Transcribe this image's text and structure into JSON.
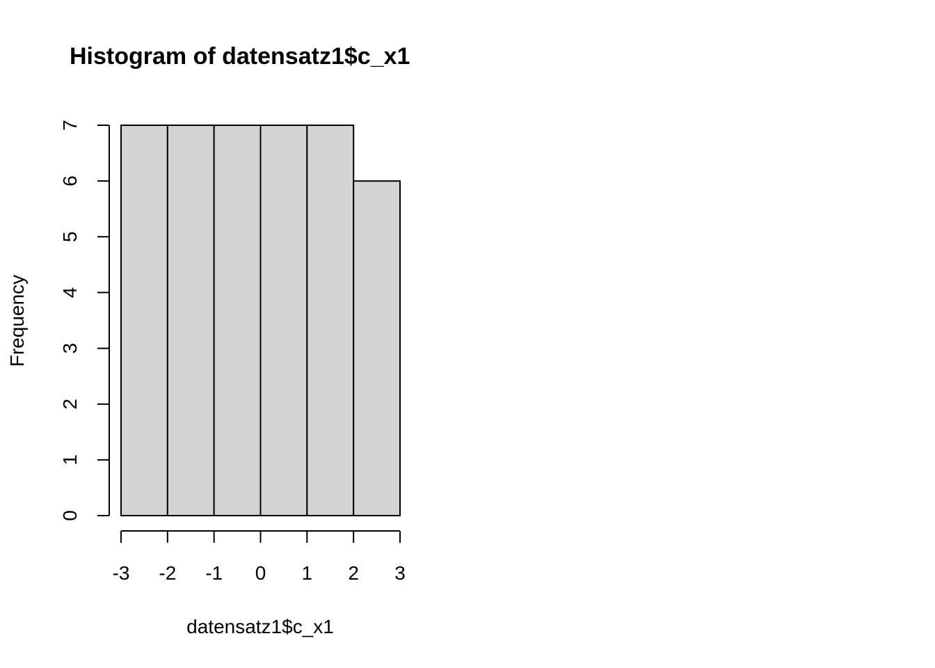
{
  "chart_data": {
    "type": "bar",
    "title": "Histogram of datensatz1$c_x1",
    "xlabel": "datensatz1$c_x1",
    "ylabel": "Frequency",
    "bins": [
      {
        "start": -3,
        "end": -2,
        "count": 7
      },
      {
        "start": -2,
        "end": -1,
        "count": 7
      },
      {
        "start": -1,
        "end": 0,
        "count": 7
      },
      {
        "start": 0,
        "end": 1,
        "count": 7
      },
      {
        "start": 1,
        "end": 2,
        "count": 7
      },
      {
        "start": 2,
        "end": 3,
        "count": 6
      }
    ],
    "xlim": [
      -3,
      3
    ],
    "ylim": [
      0,
      7
    ],
    "x_ticks": [
      "-3",
      "-2",
      "-1",
      "0",
      "1",
      "2",
      "3"
    ],
    "y_ticks": [
      "0",
      "1",
      "2",
      "3",
      "4",
      "5",
      "6",
      "7"
    ],
    "grid": false,
    "legend": "none",
    "bar_fill": "#d3d3d3",
    "bar_stroke": "#000000"
  }
}
